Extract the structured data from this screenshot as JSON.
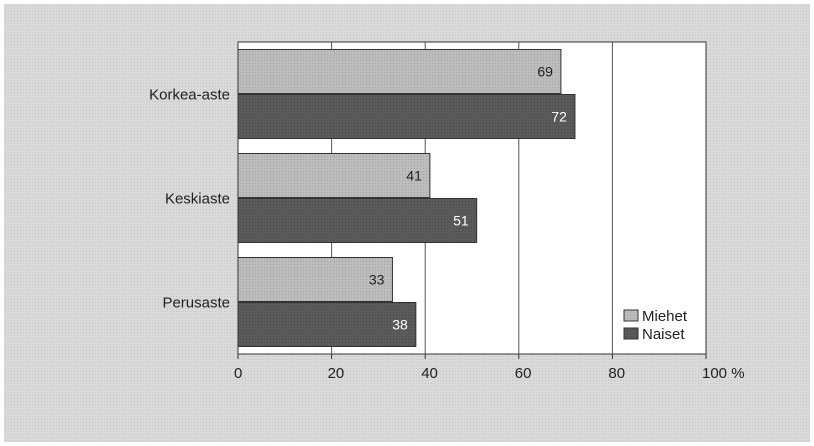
{
  "chart_data": {
    "type": "bar",
    "orientation": "horizontal",
    "categories": [
      "Korkea-aste",
      "Keskiaste",
      "Perusaste"
    ],
    "series": [
      {
        "name": "Miehet",
        "values": [
          69,
          41,
          33
        ],
        "color": "#b8b8b8"
      },
      {
        "name": "Naiset",
        "values": [
          72,
          51,
          38
        ],
        "color": "#5a5a5a"
      }
    ],
    "xlim": [
      0,
      100
    ],
    "xticks": [
      "0",
      "20",
      "40",
      "60",
      "80",
      "100 %"
    ],
    "grid": true,
    "legend": "bottom-right"
  }
}
